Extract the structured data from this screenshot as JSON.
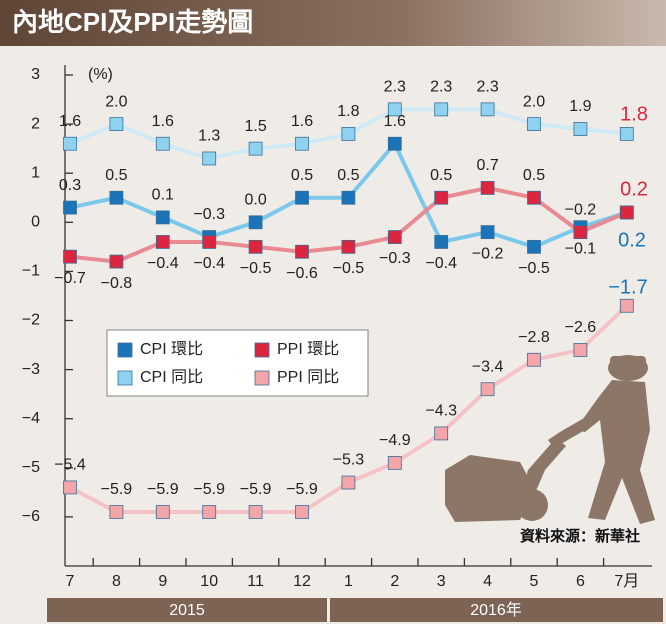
{
  "chart_data": {
    "type": "line",
    "title": "內地CPI及PPI走勢圖",
    "y_unit": "(%)",
    "source": "資料來源：新華社",
    "categories": [
      "7",
      "8",
      "9",
      "10",
      "11",
      "12",
      "1",
      "2",
      "3",
      "4",
      "5",
      "6",
      "7月"
    ],
    "year_labels": [
      "2015",
      "2016年"
    ],
    "ylim": [
      -7,
      3
    ],
    "yticks": [
      3,
      2,
      1,
      0,
      {
        "value": -1,
        "label": "−1"
      },
      {
        "value": -2,
        "label": "−2"
      },
      {
        "value": -3,
        "label": "−3"
      },
      {
        "value": -4,
        "label": "−4"
      },
      {
        "value": -5,
        "label": "−5"
      },
      {
        "value": -6,
        "label": "−6"
      }
    ],
    "grid": false,
    "series": [
      {
        "name": "CPI 環比",
        "color": "#1b74b8",
        "line_color": "#7cc8ea",
        "values": [
          0.3,
          0.5,
          0.1,
          -0.3,
          0.0,
          0.5,
          0.5,
          1.6,
          -0.4,
          -0.2,
          -0.5,
          -0.1,
          0.2
        ],
        "value_labels": [
          "0.3",
          "0.5",
          "0.1",
          "−0.3",
          "0.0",
          "0.5",
          "0.5",
          "1.6",
          "−0.4",
          "−0.2",
          "−0.5",
          "−0.1",
          "0.2"
        ]
      },
      {
        "name": "CPI 同比",
        "color": "#8fd2f0",
        "line_color": "#cfe9f5",
        "values": [
          1.6,
          2.0,
          1.6,
          1.3,
          1.5,
          1.6,
          1.8,
          2.3,
          2.3,
          2.3,
          2.0,
          1.9,
          1.8
        ],
        "value_labels": [
          "1.6",
          "2.0",
          "1.6",
          "1.3",
          "1.5",
          "1.6",
          "1.8",
          "2.3",
          "2.3",
          "2.3",
          "2.0",
          "1.9",
          "1.8"
        ]
      },
      {
        "name": "PPI 環比",
        "color": "#dc2640",
        "line_color": "#e98a93",
        "values": [
          -0.7,
          -0.8,
          -0.4,
          -0.4,
          -0.5,
          -0.6,
          -0.5,
          -0.3,
          0.5,
          0.7,
          0.5,
          -0.2,
          0.2
        ],
        "value_labels": [
          "−0.7",
          "−0.8",
          "−0.4",
          "−0.4",
          "−0.5",
          "−0.6",
          "−0.5",
          "−0.3",
          "0.5",
          "0.7",
          "0.5",
          "−0.2",
          "0.2"
        ]
      },
      {
        "name": "PPI 同比",
        "color": "#f4a5a9",
        "line_color": "#f5c3c5",
        "values": [
          -5.4,
          -5.9,
          -5.9,
          -5.9,
          -5.9,
          -5.9,
          -5.3,
          -4.9,
          -4.3,
          -3.4,
          -2.8,
          -2.6,
          -1.7
        ],
        "value_labels": [
          "−5.4",
          "−5.9",
          "−5.9",
          "−5.9",
          "−5.9",
          "−5.9",
          "−5.3",
          "−4.9",
          "−4.3",
          "−3.4",
          "−2.8",
          "−2.6",
          "−1.7"
        ]
      }
    ]
  }
}
